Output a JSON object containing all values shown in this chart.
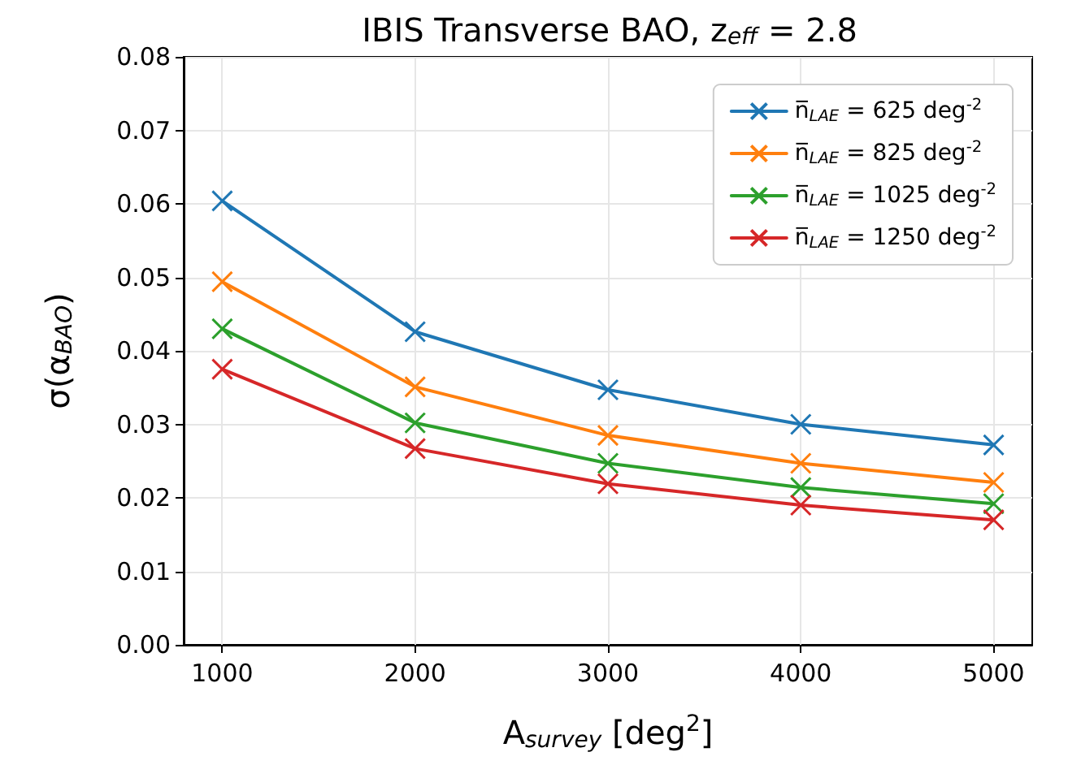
{
  "chart_data": {
    "type": "line",
    "title": "IBIS Transverse BAO, z$_{eff}$ = 2.8",
    "xlabel": "A$_{survey}$ [deg$^{2}$]",
    "ylabel": "σ(α$_{BAO}$)",
    "x": [
      1000,
      2000,
      3000,
      4000,
      5000
    ],
    "series": [
      {
        "name": "n̅$_{LAE}$ = 625 deg$^{-2}$",
        "color": "#1f77b4",
        "values": [
          0.0604,
          0.0426,
          0.0347,
          0.03,
          0.0272
        ]
      },
      {
        "name": "n̅$_{LAE}$ = 825 deg$^{-2}$",
        "color": "#ff7f0e",
        "values": [
          0.0494,
          0.0351,
          0.0285,
          0.0247,
          0.0221
        ]
      },
      {
        "name": "n̅$_{LAE}$ = 1025 deg$^{-2}$",
        "color": "#2ca02c",
        "values": [
          0.043,
          0.0302,
          0.0247,
          0.0214,
          0.0192
        ]
      },
      {
        "name": "n̅$_{LAE}$ = 1250 deg$^{-2}$",
        "color": "#d62728",
        "values": [
          0.0375,
          0.0267,
          0.0219,
          0.019,
          0.017
        ]
      }
    ],
    "xlim": [
      800,
      5200
    ],
    "xticks": [
      1000,
      2000,
      3000,
      4000,
      5000
    ],
    "ylim": [
      0,
      0.08
    ],
    "yticks": [
      {
        "value": 0,
        "label": "0.00"
      },
      {
        "value": 0.01,
        "label": "0.01"
      },
      {
        "value": 0.02,
        "label": "0.02"
      },
      {
        "value": 0.03,
        "label": "0.03"
      },
      {
        "value": 0.04,
        "label": "0.04"
      },
      {
        "value": 0.05,
        "label": "0.05"
      },
      {
        "value": 0.06,
        "label": "0.06"
      },
      {
        "value": 0.07,
        "label": "0.07"
      },
      {
        "value": 0.08,
        "label": "0.08"
      }
    ],
    "grid": true,
    "legend": "top right",
    "marker": "cross",
    "line_style": "solid"
  }
}
